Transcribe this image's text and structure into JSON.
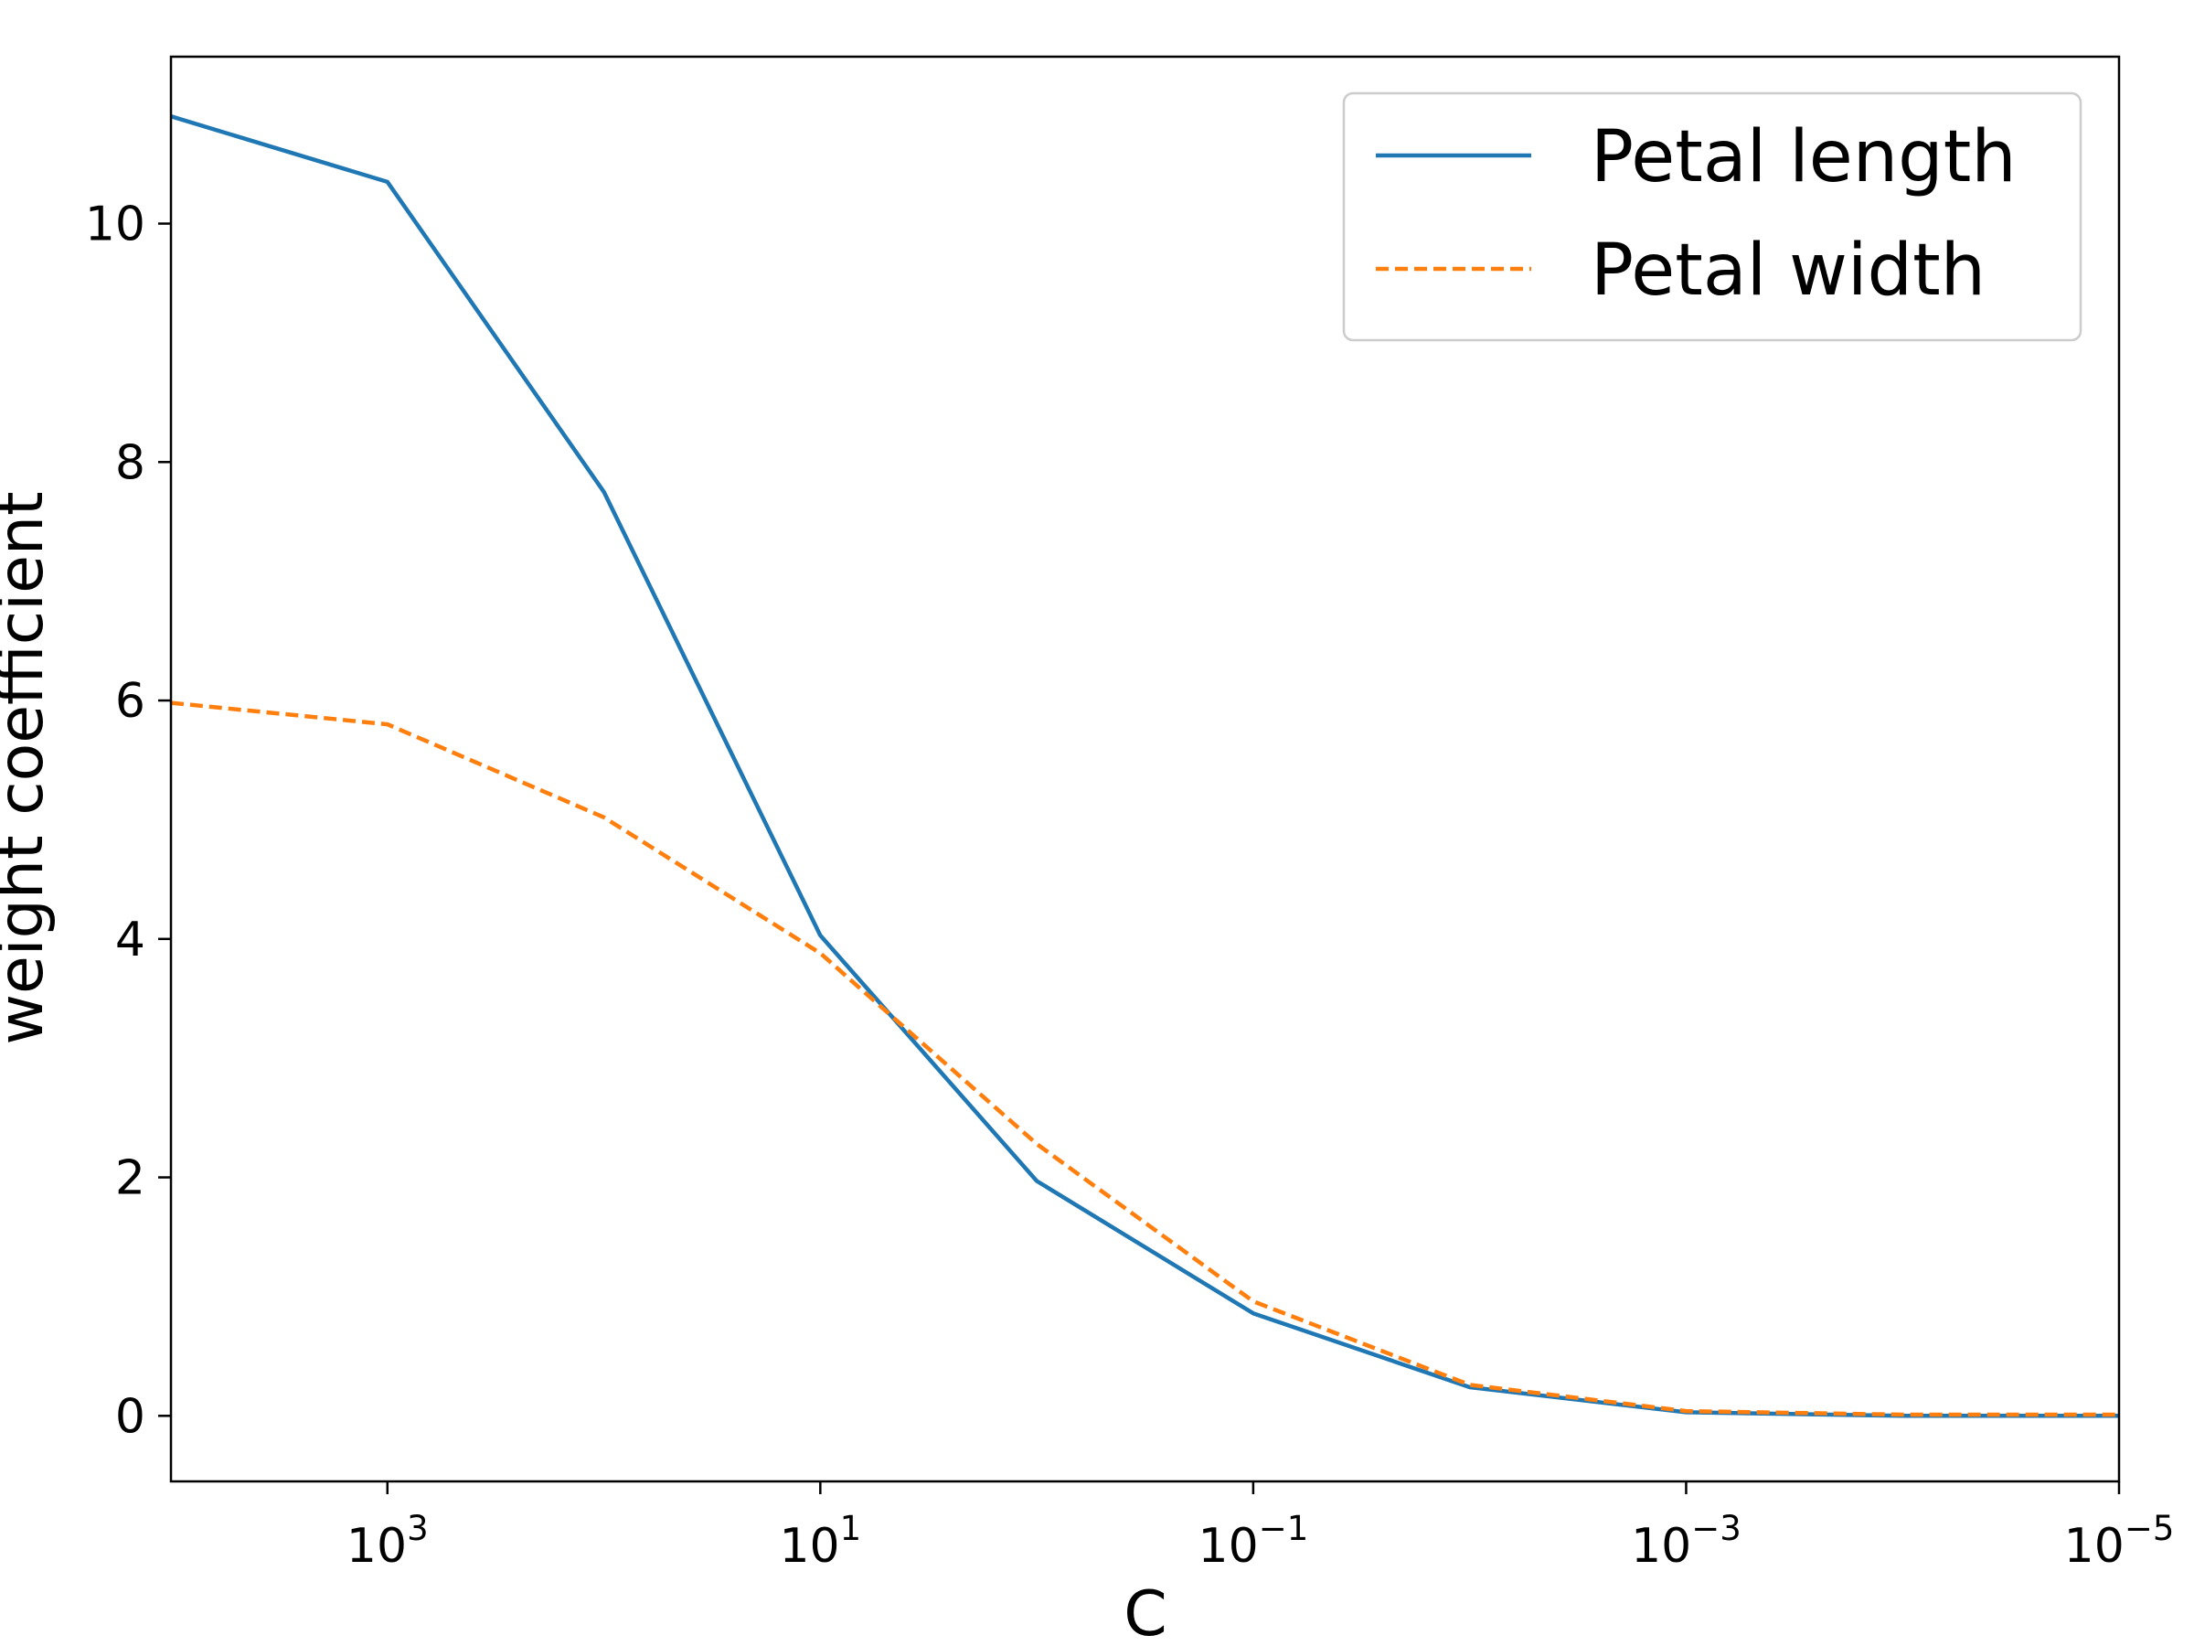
{
  "chart_data": {
    "type": "line",
    "title": "",
    "xlabel": "C",
    "ylabel": "weight coefficient",
    "x_scale": "log",
    "x_reversed": true,
    "xlim": [
      10000,
      1e-05
    ],
    "ylim": [
      -0.55,
      11.4
    ],
    "x": [
      10000,
      1000,
      100,
      10,
      1,
      0.1,
      0.01,
      0.001,
      0.0001,
      1e-05
    ],
    "x_ticks": [
      {
        "value": 1000,
        "base": "10",
        "exp": "3"
      },
      {
        "value": 10,
        "base": "10",
        "exp": "1"
      },
      {
        "value": 0.1,
        "base": "10",
        "exp": "−1"
      },
      {
        "value": 0.001,
        "base": "10",
        "exp": "−3"
      },
      {
        "value": 1e-05,
        "base": "10",
        "exp": "−5"
      }
    ],
    "y_ticks": [
      {
        "value": 0,
        "label": "0"
      },
      {
        "value": 2,
        "label": "2"
      },
      {
        "value": 4,
        "label": "4"
      },
      {
        "value": 6,
        "label": "6"
      },
      {
        "value": 8,
        "label": "8"
      },
      {
        "value": 10,
        "label": "10"
      }
    ],
    "series": [
      {
        "name": "Petal length",
        "color": "#1f77b4",
        "style": "solid",
        "values": [
          10.9,
          10.35,
          7.75,
          4.03,
          1.97,
          0.86,
          0.24,
          0.03,
          0.0,
          0.0
        ]
      },
      {
        "name": "Petal width",
        "color": "#ff7f0e",
        "style": "dashed",
        "values": [
          5.98,
          5.8,
          5.02,
          3.88,
          2.28,
          0.96,
          0.26,
          0.04,
          0.01,
          0.01
        ]
      }
    ],
    "legend": {
      "position": "top-right"
    },
    "grid": false
  }
}
